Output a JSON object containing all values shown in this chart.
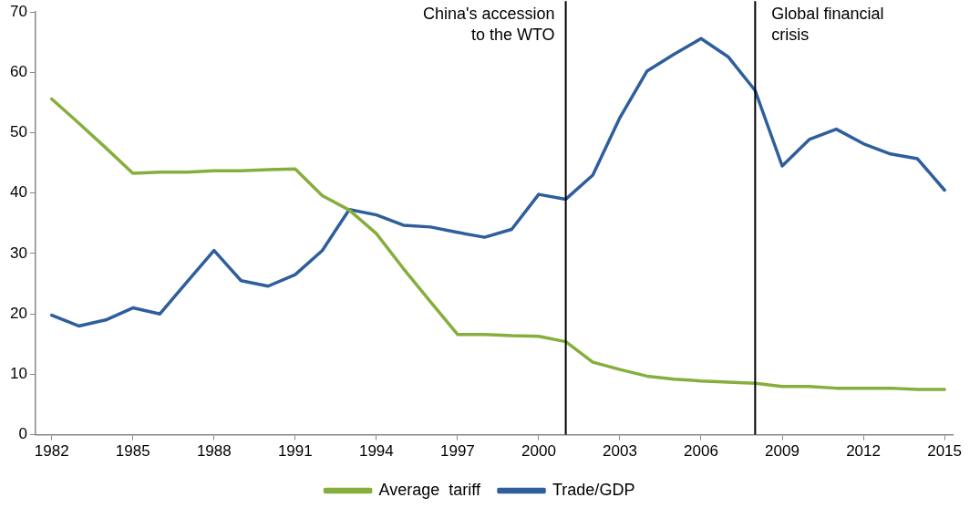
{
  "chart_data": {
    "type": "line",
    "x": [
      1982,
      1983,
      1984,
      1985,
      1986,
      1987,
      1988,
      1989,
      1990,
      1991,
      1992,
      1993,
      1994,
      1995,
      1996,
      1997,
      1998,
      1999,
      2000,
      2001,
      2002,
      2003,
      2004,
      2005,
      2006,
      2007,
      2008,
      2009,
      2010,
      2011,
      2012,
      2013,
      2014,
      2015
    ],
    "series": [
      {
        "name": "Average  tariff",
        "color": "#86ae3c",
        "values": [
          55.6,
          51.6,
          47.5,
          43.3,
          43.5,
          43.5,
          43.7,
          43.7,
          43.9,
          44,
          39.6,
          37.2,
          33.3,
          27.5,
          22,
          16.6,
          16.6,
          16.4,
          16.3,
          15.4,
          12,
          10.8,
          9.7,
          9.2,
          8.9,
          8.7,
          8.5,
          8,
          8,
          7.7,
          7.7,
          7.7,
          7.5,
          7.5
        ]
      },
      {
        "name": "Trade/GDP",
        "color": "#2e5e9c",
        "values": [
          19.8,
          18,
          19,
          21,
          20,
          25.3,
          30.5,
          25.5,
          24.6,
          26.5,
          30.5,
          37.3,
          36.4,
          34.7,
          34.4,
          33.5,
          32.7,
          34,
          39.8,
          39,
          43,
          52.5,
          60.2,
          63,
          65.6,
          62.6,
          57,
          44.5,
          48.9,
          50.6,
          48.2,
          46.5,
          45.7,
          40.5
        ]
      }
    ],
    "xlim": [
      1981.4,
      2015.3
    ],
    "xticks": [
      1982,
      1985,
      1988,
      1991,
      1994,
      1997,
      2000,
      2003,
      2006,
      2009,
      2012,
      2015
    ],
    "ylim": [
      0,
      70
    ],
    "yticks": [
      0,
      10,
      20,
      30,
      40,
      50,
      60,
      70
    ],
    "ref_lines": [
      {
        "axis": "x",
        "value": 2001,
        "label": "China's accession to the WTO",
        "color": "#000000"
      },
      {
        "axis": "x",
        "value": 2008,
        "label": "Global financial crisis",
        "color": "#000000"
      }
    ],
    "grid": false,
    "legend": "bottom",
    "marker": "none",
    "line_style": "solid"
  }
}
